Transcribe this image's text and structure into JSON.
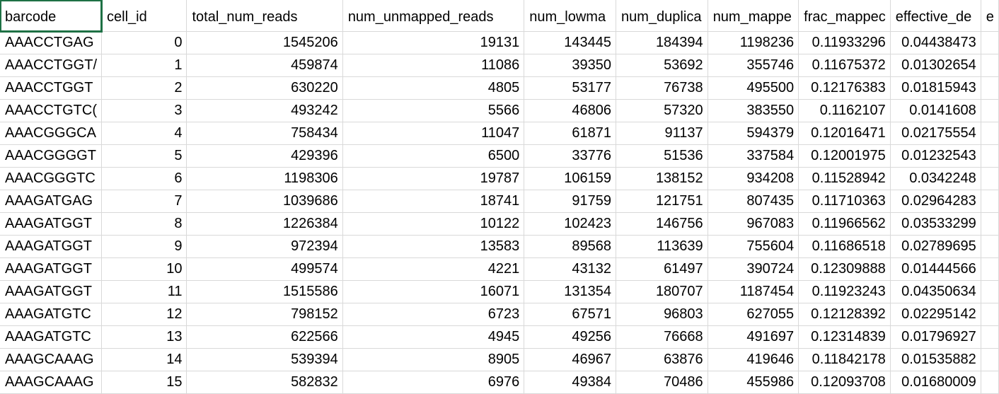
{
  "spreadsheet": {
    "columns": [
      "barcode",
      "cell_id",
      "total_num_reads",
      "num_unmapped_reads",
      "num_lowma",
      "num_duplica",
      "num_mappe",
      "frac_mappec",
      "effective_de",
      "e"
    ],
    "rows": [
      [
        "AAACCTGAG",
        "0",
        "1545206",
        "19131",
        "143445",
        "184394",
        "1198236",
        "0.11933296",
        "0.04438473",
        ""
      ],
      [
        "AAACCTGGT/",
        "1",
        "459874",
        "11086",
        "39350",
        "53692",
        "355746",
        "0.11675372",
        "0.01302654",
        ""
      ],
      [
        "AAACCTGGT",
        "2",
        "630220",
        "4805",
        "53177",
        "76738",
        "495500",
        "0.12176383",
        "0.01815943",
        ""
      ],
      [
        "AAACCTGTC(",
        "3",
        "493242",
        "5566",
        "46806",
        "57320",
        "383550",
        "0.1162107",
        "0.0141608",
        ""
      ],
      [
        "AAACGGGCA",
        "4",
        "758434",
        "11047",
        "61871",
        "91137",
        "594379",
        "0.12016471",
        "0.02175554",
        ""
      ],
      [
        "AAACGGGGT",
        "5",
        "429396",
        "6500",
        "33776",
        "51536",
        "337584",
        "0.12001975",
        "0.01232543",
        ""
      ],
      [
        "AAACGGGTC",
        "6",
        "1198306",
        "19787",
        "106159",
        "138152",
        "934208",
        "0.11528942",
        "0.0342248",
        ""
      ],
      [
        "AAAGATGAG",
        "7",
        "1039686",
        "18741",
        "91759",
        "121751",
        "807435",
        "0.11710363",
        "0.02964283",
        ""
      ],
      [
        "AAAGATGGT",
        "8",
        "1226384",
        "10122",
        "102423",
        "146756",
        "967083",
        "0.11966562",
        "0.03533299",
        ""
      ],
      [
        "AAAGATGGT",
        "9",
        "972394",
        "13583",
        "89568",
        "113639",
        "755604",
        "0.11686518",
        "0.02789695",
        ""
      ],
      [
        "AAAGATGGT",
        "10",
        "499574",
        "4221",
        "43132",
        "61497",
        "390724",
        "0.12309888",
        "0.01444566",
        ""
      ],
      [
        "AAAGATGGT",
        "11",
        "1515586",
        "16071",
        "131354",
        "180707",
        "1187454",
        "0.11923243",
        "0.04350634",
        ""
      ],
      [
        "AAAGATGTC",
        "12",
        "798152",
        "6723",
        "67571",
        "96803",
        "627055",
        "0.12128392",
        "0.02295142",
        ""
      ],
      [
        "AAAGATGTC",
        "13",
        "622566",
        "4945",
        "49256",
        "76668",
        "491697",
        "0.12314839",
        "0.01796927",
        ""
      ],
      [
        "AAAGCAAAG",
        "14",
        "539394",
        "8905",
        "46967",
        "63876",
        "419646",
        "0.11842178",
        "0.01535882",
        ""
      ],
      [
        "AAAGCAAAG",
        "15",
        "582832",
        "6976",
        "49384",
        "70486",
        "455986",
        "0.12093708",
        "0.01680009",
        ""
      ]
    ],
    "active_cell": "barcode",
    "colors": {
      "gridline": "#d9d9d9",
      "selection": "#1e7145",
      "text": "#000000"
    }
  }
}
